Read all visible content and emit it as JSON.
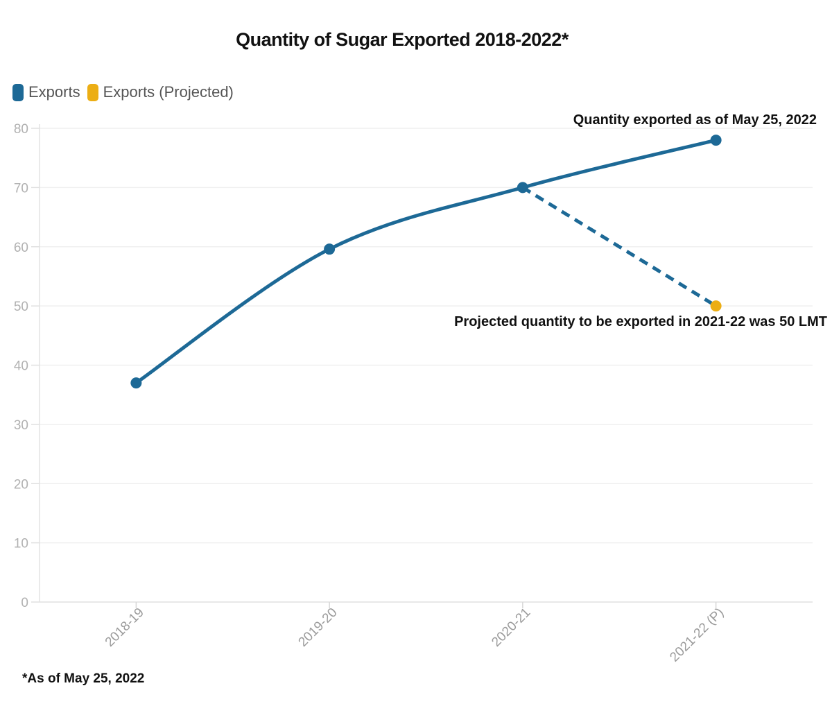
{
  "title": "Quantity of Sugar Exported 2018-2022*",
  "footnote": "*As of May 25, 2022",
  "legend": {
    "items": [
      {
        "label": "Exports",
        "color": "#1d6996"
      },
      {
        "label": "Exports (Projected)",
        "color": "#ecae14"
      }
    ]
  },
  "annotations": {
    "exported": "Quantity exported as of May 25, 2022",
    "projected": "Projected quantity to be exported in 2021-22 was 50 LMT"
  },
  "colors": {
    "exports_line": "#1d6996",
    "projected_marker": "#ecae14",
    "grid": "#efefef",
    "axis": "#e3e3e3",
    "y_tick": "#e0e0e0",
    "x_tick": "#d6d6d6",
    "y_label": "#b1b1b1",
    "x_label": "#9b9b9b",
    "annotation_text": "#111111"
  },
  "chart_data": {
    "type": "line",
    "categories": [
      "2018-19",
      "2019-20",
      "2020-21",
      "2021-22 (P)"
    ],
    "series": [
      {
        "name": "Exports",
        "style": "solid",
        "color": "#1d6996",
        "marker_color": "#1d6996",
        "x": [
          "2018-19",
          "2019-20",
          "2020-21",
          "2021-22 (P)"
        ],
        "values": [
          37,
          59.6,
          70,
          78
        ]
      },
      {
        "name": "Exports (Projected)",
        "style": "dashed",
        "color": "#1d6996",
        "marker_color": "#ecae14",
        "marker_only_last": true,
        "x": [
          "2020-21",
          "2021-22 (P)"
        ],
        "values": [
          70,
          50
        ]
      }
    ],
    "title": "Quantity of Sugar Exported 2018-2022*",
    "xlabel": "",
    "ylabel": "",
    "unit": "LMT",
    "ylim": [
      0,
      80
    ],
    "yticks": [
      0,
      10,
      20,
      30,
      40,
      50,
      60,
      70,
      80
    ],
    "grid": true,
    "legend_position": "top-left"
  }
}
